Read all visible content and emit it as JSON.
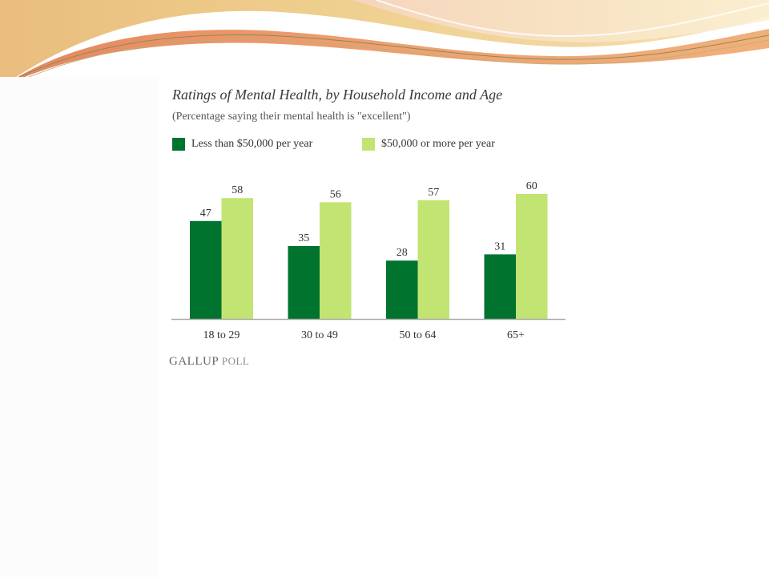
{
  "colors": {
    "series_dark": "#00732e",
    "series_light": "#c2e472",
    "axis": "#a9a9a9"
  },
  "logo_text": {
    "main": "GALLUP",
    "secondary": "POLL"
  },
  "chart_data": {
    "type": "bar",
    "title": "Ratings of Mental Health, by Household Income and Age",
    "subtitle": "(Percentage saying their mental health is \"excellent\")",
    "categories": [
      "18 to 29",
      "30 to 49",
      "50 to 64",
      "65+"
    ],
    "series": [
      {
        "name": "Less than $50,000 per year",
        "values": [
          47,
          35,
          28,
          31
        ]
      },
      {
        "name": "$50,000 or more per year",
        "values": [
          58,
          56,
          57,
          60
        ]
      }
    ],
    "ylim": [
      0,
      60
    ],
    "grid": false,
    "legend": "top-left"
  }
}
